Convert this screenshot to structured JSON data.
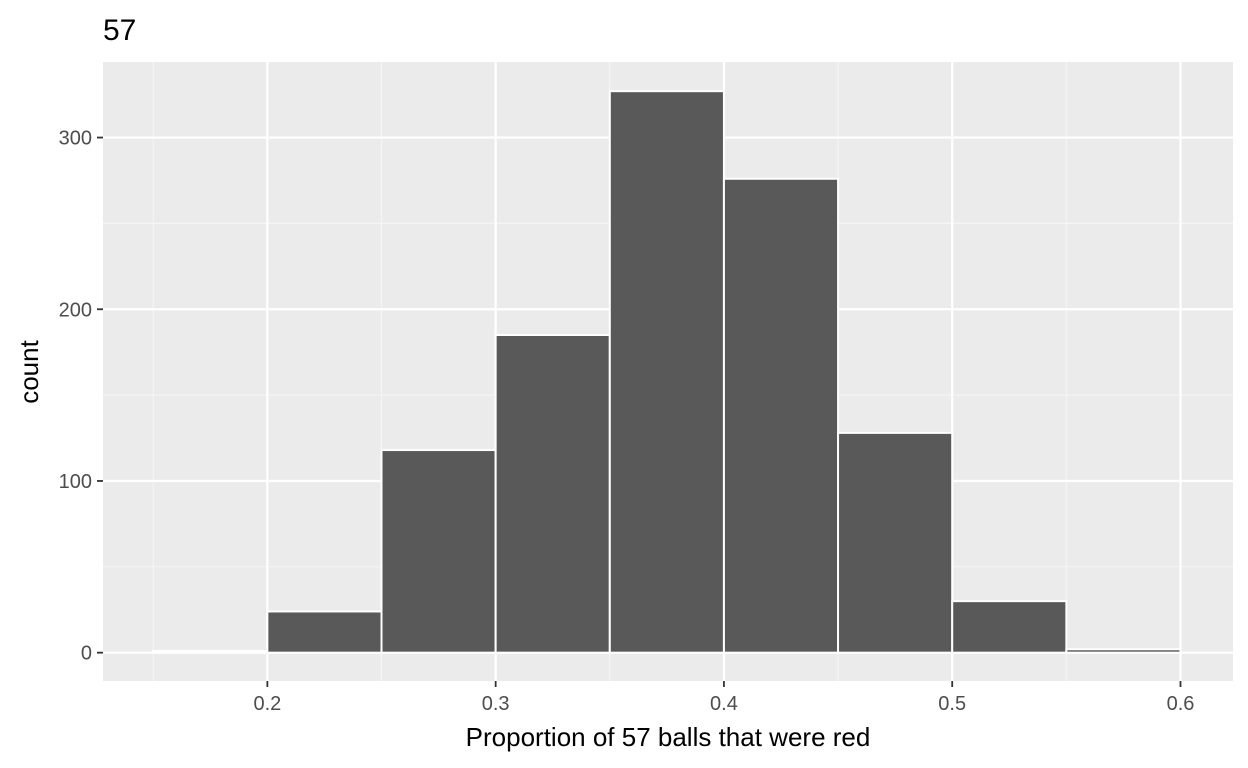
{
  "chart_data": {
    "type": "bar",
    "title": "57",
    "xlabel": "Proportion of 57 balls that were red",
    "ylabel": "count",
    "bin_width": 0.05,
    "bins": [
      {
        "start": 0.15,
        "end": 0.2,
        "count": 1
      },
      {
        "start": 0.2,
        "end": 0.25,
        "count": 24
      },
      {
        "start": 0.25,
        "end": 0.3,
        "count": 118
      },
      {
        "start": 0.3,
        "end": 0.35,
        "count": 185
      },
      {
        "start": 0.35,
        "end": 0.4,
        "count": 327
      },
      {
        "start": 0.4,
        "end": 0.45,
        "count": 276
      },
      {
        "start": 0.45,
        "end": 0.5,
        "count": 128
      },
      {
        "start": 0.5,
        "end": 0.55,
        "count": 30
      },
      {
        "start": 0.55,
        "end": 0.6,
        "count": 2
      }
    ],
    "xlim": [
      0.128,
      0.623
    ],
    "ylim": [
      -16.5,
      344
    ],
    "x_ticks": [
      0.2,
      0.3,
      0.4,
      0.5,
      0.6
    ],
    "x_tick_labels": [
      "0.2",
      "0.3",
      "0.4",
      "0.5",
      "0.6"
    ],
    "y_ticks": [
      0,
      100,
      200,
      300
    ],
    "y_tick_labels": [
      "0",
      "100",
      "200",
      "300"
    ],
    "grid": true,
    "legend": "none",
    "colors": {
      "bar_fill": "#595959",
      "bar_outline": "#ffffff",
      "panel_background": "#ebebeb",
      "grid_major": "#ffffff",
      "grid_minor": "#f5f5f5",
      "tick_text": "#4d4d4d"
    }
  }
}
